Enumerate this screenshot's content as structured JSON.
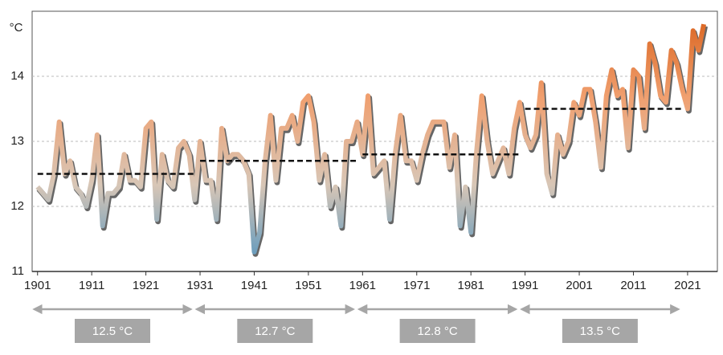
{
  "chart_data": {
    "type": "line",
    "y_label": "°C",
    "x": [
      1901,
      1902,
      1903,
      1904,
      1905,
      1906,
      1907,
      1908,
      1909,
      1910,
      1911,
      1912,
      1913,
      1914,
      1915,
      1916,
      1917,
      1918,
      1919,
      1920,
      1921,
      1922,
      1923,
      1924,
      1925,
      1926,
      1927,
      1928,
      1929,
      1930,
      1931,
      1932,
      1933,
      1934,
      1935,
      1936,
      1937,
      1938,
      1939,
      1940,
      1941,
      1942,
      1943,
      1944,
      1945,
      1946,
      1947,
      1948,
      1949,
      1950,
      1951,
      1952,
      1953,
      1954,
      1955,
      1956,
      1957,
      1958,
      1959,
      1960,
      1961,
      1962,
      1963,
      1964,
      1965,
      1966,
      1967,
      1968,
      1969,
      1970,
      1971,
      1972,
      1973,
      1974,
      1975,
      1976,
      1977,
      1978,
      1979,
      1980,
      1981,
      1982,
      1983,
      1984,
      1985,
      1986,
      1987,
      1988,
      1989,
      1990,
      1991,
      1992,
      1993,
      1994,
      1995,
      1996,
      1997,
      1998,
      1999,
      2000,
      2001,
      2002,
      2003,
      2004,
      2005,
      2006,
      2007,
      2008,
      2009,
      2010,
      2011,
      2012,
      2013,
      2014,
      2015,
      2016,
      2017,
      2018,
      2019,
      2020,
      2021,
      2022,
      2023,
      2024
    ],
    "values": [
      12.3,
      12.2,
      12.1,
      12.5,
      13.3,
      12.5,
      12.7,
      12.3,
      12.2,
      12.0,
      12.4,
      13.1,
      11.7,
      12.2,
      12.2,
      12.3,
      12.8,
      12.4,
      12.4,
      12.3,
      13.2,
      13.3,
      11.8,
      12.8,
      12.4,
      12.3,
      12.9,
      13.0,
      12.8,
      12.1,
      13.0,
      12.4,
      12.4,
      11.8,
      13.2,
      12.7,
      12.8,
      12.8,
      12.7,
      12.5,
      11.3,
      11.6,
      12.7,
      13.4,
      12.4,
      13.2,
      13.2,
      13.4,
      13.0,
      13.6,
      13.7,
      13.3,
      12.4,
      12.8,
      12.0,
      12.3,
      11.7,
      13.0,
      13.0,
      13.3,
      12.8,
      13.7,
      12.5,
      12.6,
      12.7,
      11.8,
      12.8,
      13.4,
      12.7,
      12.7,
      12.4,
      12.8,
      13.1,
      13.3,
      13.3,
      13.3,
      12.6,
      13.1,
      11.7,
      12.3,
      11.6,
      12.8,
      13.7,
      13.0,
      12.5,
      12.7,
      12.9,
      12.5,
      13.2,
      13.6,
      13.1,
      12.9,
      13.1,
      13.9,
      12.5,
      12.2,
      13.1,
      12.8,
      13.0,
      13.6,
      13.4,
      13.8,
      13.8,
      13.3,
      12.6,
      13.7,
      14.1,
      13.7,
      13.8,
      12.9,
      14.1,
      14.0,
      13.2,
      14.5,
      14.2,
      13.7,
      13.6,
      14.4,
      14.2,
      13.8,
      13.5,
      14.7,
      14.4,
      14.8
    ],
    "colors": [
      "#4f93bf",
      "#d8c6b6",
      "#f0a070",
      "#d9601a"
    ],
    "xlim": [
      1900,
      2026.5
    ],
    "ylim": [
      11,
      15
    ],
    "xticks": [
      1901,
      1911,
      1921,
      1931,
      1941,
      1951,
      1961,
      1971,
      1981,
      1991,
      2001,
      2011,
      2021
    ],
    "yticks": [
      11,
      12,
      13,
      14
    ],
    "grid": true,
    "periods": [
      {
        "start": 1901,
        "end": 1930,
        "mean": 12.5,
        "label": "12.5 °C"
      },
      {
        "start": 1931,
        "end": 1960,
        "mean": 12.7,
        "label": "12.7 °C"
      },
      {
        "start": 1961,
        "end": 1990,
        "mean": 12.8,
        "label": "12.8 °C"
      },
      {
        "start": 1991,
        "end": 2020,
        "mean": 13.5,
        "label": "13.5 °C"
      }
    ]
  }
}
